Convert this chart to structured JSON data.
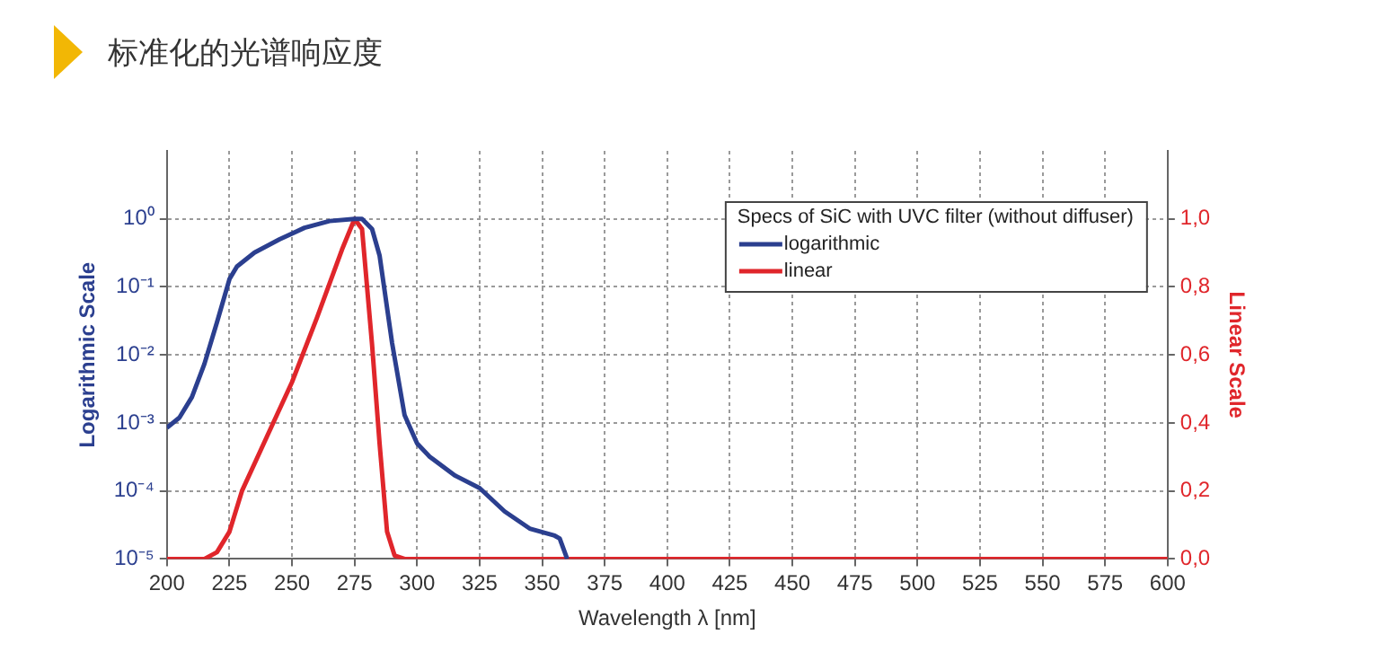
{
  "chart_data": {
    "type": "line",
    "title": "标准化的光谱响应度",
    "xlabel": "Wavelength λ [nm]",
    "ylabel": "Logarithmic Scale",
    "y2label": "Linear Scale",
    "legend_title": "Specs of SiC with UVC filter (without diffuser)",
    "legend": "top right",
    "grid": true,
    "log": "y",
    "xlim": [
      200,
      600
    ],
    "xticks": [
      200,
      225,
      250,
      275,
      300,
      325,
      350,
      375,
      400,
      425,
      450,
      475,
      500,
      525,
      550,
      575,
      600
    ],
    "ylim": [
      1e-05,
      10
    ],
    "yticks": [
      {
        "value": 1e-05,
        "label": "10⁻⁵"
      },
      {
        "value": 0.0001,
        "label": "10⁻⁴"
      },
      {
        "value": 0.001,
        "label": "10⁻³"
      },
      {
        "value": 0.01,
        "label": "10⁻²"
      },
      {
        "value": 0.1,
        "label": "10⁻¹"
      },
      {
        "value": 1,
        "label": "10⁰"
      }
    ],
    "y2lim": [
      0,
      1.2
    ],
    "y2ticks": [
      {
        "value": 0,
        "label": "0,0"
      },
      {
        "value": 0.2,
        "label": "0,2"
      },
      {
        "value": 0.4,
        "label": "0,4"
      },
      {
        "value": 0.6,
        "label": "0,6"
      },
      {
        "value": 0.8,
        "label": "0,8"
      },
      {
        "value": 1,
        "label": "1,0"
      }
    ],
    "series": [
      {
        "name": "logarithmic",
        "type": "line",
        "color": "#2b3f8f",
        "x": [
          200,
          205,
          210,
          215,
          220,
          225,
          228,
          235,
          245,
          255,
          265,
          275,
          278,
          282,
          285,
          290,
          295,
          300,
          305,
          315,
          325,
          335,
          345,
          355,
          357,
          360
        ],
        "values": [
          0.00085,
          0.0012,
          0.0024,
          0.0074,
          0.03,
          0.13,
          0.2,
          0.32,
          0.5,
          0.74,
          0.93,
          1,
          1,
          0.71,
          0.29,
          0.015,
          0.0013,
          0.0005,
          0.00032,
          0.00017,
          0.00011,
          5e-05,
          2.8e-05,
          2.2e-05,
          2e-05,
          1e-05
        ]
      },
      {
        "name": "linear",
        "type": "line",
        "axis": "y2",
        "color": "#e0262b",
        "x": [
          200,
          215,
          220,
          225,
          230,
          240,
          250,
          260,
          270,
          275,
          278,
          282,
          285,
          288,
          291,
          295,
          600
        ],
        "values": [
          0,
          0,
          0.02,
          0.08,
          0.2,
          0.36,
          0.52,
          0.71,
          0.91,
          1,
          0.97,
          0.63,
          0.34,
          0.08,
          0.01,
          0,
          0
        ]
      }
    ]
  }
}
